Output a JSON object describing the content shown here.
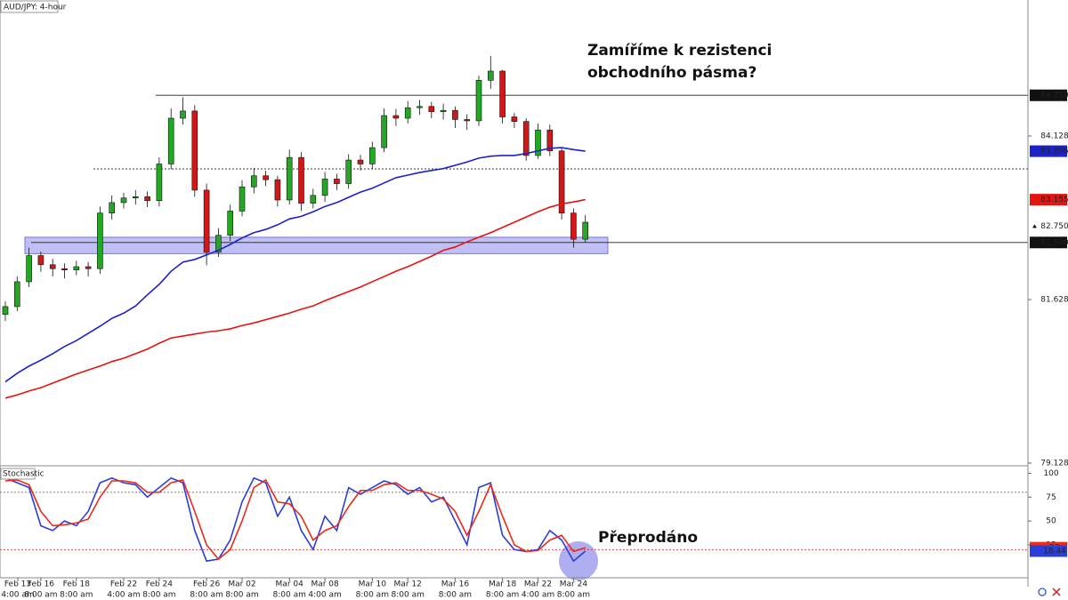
{
  "chart_data": [
    {
      "type": "candlestick",
      "title": "AUD/JPY: 4-hour",
      "annotation": [
        "Zamíříme k rezistenci",
        "obchodního pásma?"
      ],
      "categories": [
        "Feb 13",
        null,
        null,
        "Feb 16",
        null,
        null,
        "Feb 18",
        null,
        null,
        null,
        "Feb 22",
        null,
        null,
        "Feb 24",
        null,
        null,
        null,
        "Feb 26",
        null,
        null,
        "Mar 02",
        null,
        null,
        null,
        "Mar 04",
        null,
        null,
        "Mar 08",
        null,
        null,
        null,
        "Mar 10",
        null,
        null,
        "Mar 12",
        null,
        null,
        null,
        "Mar 16",
        null,
        null,
        null,
        "Mar 18",
        null,
        null,
        "Mar 22",
        null,
        null,
        "Mar 24",
        null
      ],
      "time_labels": [
        "4:00 am",
        null,
        null,
        "8:00 am",
        null,
        null,
        "8:00 am",
        null,
        null,
        null,
        "4:00 am",
        null,
        null,
        "8:00 am",
        null,
        null,
        null,
        "8:00 am",
        null,
        null,
        "8:00 am",
        null,
        null,
        null,
        "8:00 am",
        null,
        null,
        "4:00 am",
        null,
        null,
        null,
        "8:00 am",
        null,
        null,
        "8:00 am",
        null,
        null,
        null,
        "8:00 am",
        null,
        null,
        null,
        "8:00 am",
        null,
        null,
        "4:00 am",
        null,
        null,
        "8:00 am",
        null
      ],
      "open": [
        81.4,
        81.52,
        81.9,
        82.3,
        82.16,
        82.1,
        82.08,
        82.13,
        82.1,
        82.95,
        83.11,
        83.18,
        83.2,
        83.14,
        83.7,
        84.4,
        84.51,
        83.3,
        82.35,
        82.61,
        82.98,
        83.35,
        83.52,
        83.46,
        83.15,
        83.8,
        83.1,
        83.22,
        83.47,
        83.4,
        83.76,
        83.7,
        83.95,
        84.44,
        84.4,
        84.56,
        84.58,
        84.5,
        84.52,
        84.38,
        84.36,
        84.98,
        85.12,
        84.42,
        84.35,
        83.83,
        84.22,
        83.9,
        82.95,
        82.55
      ],
      "high": [
        81.6,
        81.98,
        82.42,
        82.36,
        82.25,
        82.18,
        82.22,
        82.2,
        83.05,
        83.22,
        83.26,
        83.3,
        83.28,
        83.8,
        84.55,
        84.72,
        84.6,
        83.4,
        82.72,
        83.08,
        83.45,
        83.64,
        83.6,
        83.52,
        83.92,
        83.88,
        83.32,
        83.58,
        83.55,
        83.85,
        83.84,
        84.04,
        84.55,
        84.54,
        84.66,
        84.68,
        84.65,
        84.62,
        84.58,
        84.46,
        85.05,
        85.35,
        85.14,
        84.48,
        84.4,
        84.32,
        84.3,
        83.95,
        83.02,
        82.92
      ],
      "low": [
        81.3,
        81.45,
        81.82,
        82.05,
        81.98,
        81.95,
        82.0,
        81.98,
        82.02,
        82.85,
        83.02,
        83.08,
        83.04,
        83.05,
        83.62,
        84.3,
        83.2,
        82.15,
        82.28,
        82.52,
        82.9,
        83.25,
        83.36,
        83.05,
        83.08,
        82.98,
        83.02,
        83.12,
        83.3,
        83.32,
        83.6,
        83.62,
        83.88,
        84.28,
        84.32,
        84.45,
        84.4,
        84.38,
        84.25,
        84.22,
        84.28,
        84.85,
        84.32,
        84.25,
        83.75,
        83.78,
        83.82,
        82.85,
        82.42,
        82.5
      ],
      "close": [
        81.52,
        81.9,
        82.3,
        82.16,
        82.1,
        82.08,
        82.13,
        82.1,
        82.95,
        83.11,
        83.18,
        83.2,
        83.14,
        83.7,
        84.4,
        84.51,
        83.3,
        82.35,
        82.61,
        82.98,
        83.35,
        83.52,
        83.46,
        83.15,
        83.8,
        83.1,
        83.22,
        83.47,
        83.4,
        83.76,
        83.7,
        83.95,
        84.44,
        84.4,
        84.56,
        84.58,
        84.5,
        84.52,
        84.38,
        84.36,
        84.98,
        85.12,
        84.42,
        84.35,
        83.83,
        84.22,
        83.9,
        82.95,
        82.55,
        82.81
      ],
      "up_color": "#22a822",
      "down_color": "#d01818",
      "lines": [
        {
          "color": "#1c22c8",
          "values": [
            80.37,
            80.5,
            80.61,
            80.7,
            80.8,
            80.91,
            81.0,
            81.11,
            81.22,
            81.34,
            81.42,
            81.53,
            81.7,
            81.86,
            82.06,
            82.2,
            82.24,
            82.31,
            82.38,
            82.47,
            82.57,
            82.65,
            82.7,
            82.77,
            82.86,
            82.9,
            82.97,
            83.05,
            83.11,
            83.19,
            83.27,
            83.33,
            83.41,
            83.49,
            83.53,
            83.57,
            83.6,
            83.63,
            83.68,
            83.73,
            83.79,
            83.82,
            83.83,
            83.83,
            83.86,
            83.9,
            83.94,
            83.95,
            83.92,
            83.896
          ]
        },
        {
          "color": "#e51410",
          "values": [
            80.12,
            80.17,
            80.23,
            80.28,
            80.35,
            80.42,
            80.49,
            80.55,
            80.61,
            80.68,
            80.73,
            80.8,
            80.87,
            80.96,
            81.04,
            81.07,
            81.1,
            81.13,
            81.15,
            81.18,
            81.23,
            81.27,
            81.32,
            81.37,
            81.42,
            81.48,
            81.53,
            81.61,
            81.68,
            81.75,
            81.82,
            81.9,
            81.98,
            82.06,
            82.13,
            82.21,
            82.29,
            82.38,
            82.43,
            82.51,
            82.58,
            82.65,
            82.73,
            82.81,
            82.89,
            82.97,
            83.04,
            83.09,
            83.12,
            83.155
          ]
        }
      ],
      "levels": [
        {
          "value": 84.75,
          "label": "84.750"
        },
        {
          "value": 82.5,
          "label": "82.500"
        }
      ],
      "dotted_level": 83.625,
      "zone": [
        82.33,
        82.58
      ],
      "zone_color": "#8c8cf0",
      "current_price": {
        "value": 82.75,
        "label": "82.750"
      },
      "ylim": [
        79.1,
        86.207
      ],
      "yticks": [
        79.128,
        81.628,
        84.128
      ]
    },
    {
      "type": "stochastic",
      "title": "Stochastic",
      "annotation": "Přeprodáno",
      "lines": [
        {
          "color": "#2b3fd8",
          "values": [
            95,
            90,
            85,
            45,
            40,
            50,
            45,
            60,
            90,
            95,
            90,
            88,
            75,
            85,
            95,
            90,
            40,
            8,
            10,
            30,
            70,
            95,
            90,
            55,
            75,
            40,
            20,
            55,
            40,
            85,
            78,
            85,
            92,
            88,
            78,
            85,
            70,
            75,
            50,
            25,
            85,
            90,
            35,
            20,
            18,
            20,
            40,
            30,
            8,
            18.44
          ]
        },
        {
          "color": "#ec2a1a",
          "values": [
            92,
            93,
            88,
            60,
            45,
            46,
            48,
            52,
            75,
            92,
            92,
            90,
            80,
            80,
            90,
            93,
            60,
            25,
            10,
            20,
            50,
            85,
            93,
            70,
            68,
            55,
            30,
            40,
            45,
            65,
            82,
            82,
            88,
            90,
            82,
            82,
            78,
            73,
            60,
            35,
            60,
            88,
            55,
            25,
            18,
            19,
            30,
            35,
            18,
            22
          ]
        }
      ],
      "levels": [
        80,
        20
      ],
      "ylim": [
        -9.5,
        106.9
      ],
      "yticks": [
        25,
        50,
        75,
        100
      ]
    }
  ]
}
